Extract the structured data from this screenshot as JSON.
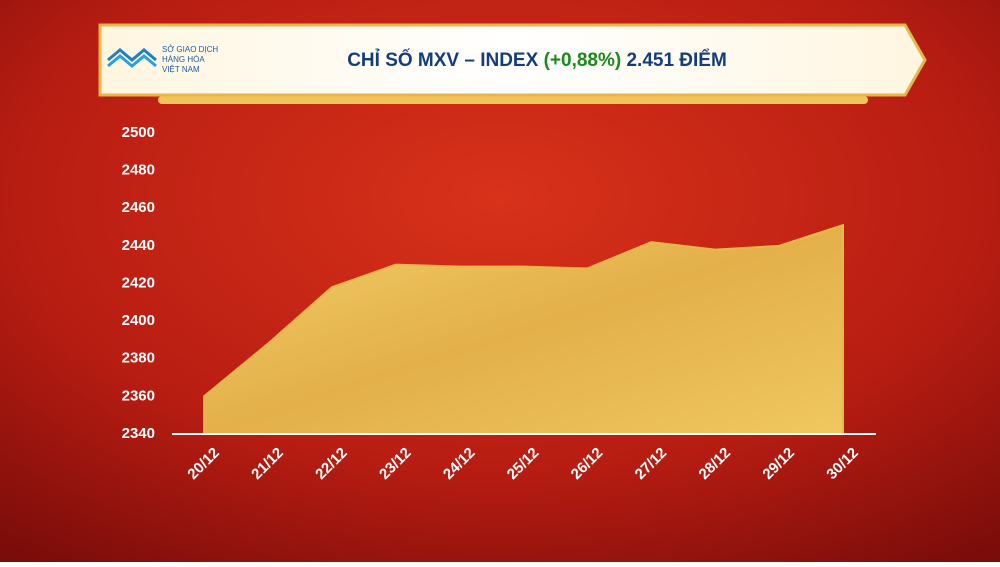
{
  "chart_data": {
    "type": "area",
    "title": "CHỈ SỐ MXV – INDEX",
    "title_change": "(+0,88%)",
    "title_value": "2.451 ĐIỂM",
    "logo_lines": [
      "SỞ GIAO DỊCH",
      "HÀNG HÓA",
      "VIỆT NAM"
    ],
    "categories": [
      "20/12",
      "21/12",
      "22/12",
      "23/12",
      "24/12",
      "25/12",
      "26/12",
      "27/12",
      "28/12",
      "29/12",
      "30/12"
    ],
    "values": [
      2360,
      2388,
      2418,
      2430,
      2429,
      2429,
      2428,
      2442,
      2438,
      2440,
      2451
    ],
    "color": "#e8b84a",
    "change_color": "#1a8a1a",
    "ylim": [
      2340,
      2500
    ],
    "yticks": [
      2340,
      2360,
      2380,
      2400,
      2420,
      2440,
      2460,
      2480,
      2500
    ],
    "grid": false
  }
}
